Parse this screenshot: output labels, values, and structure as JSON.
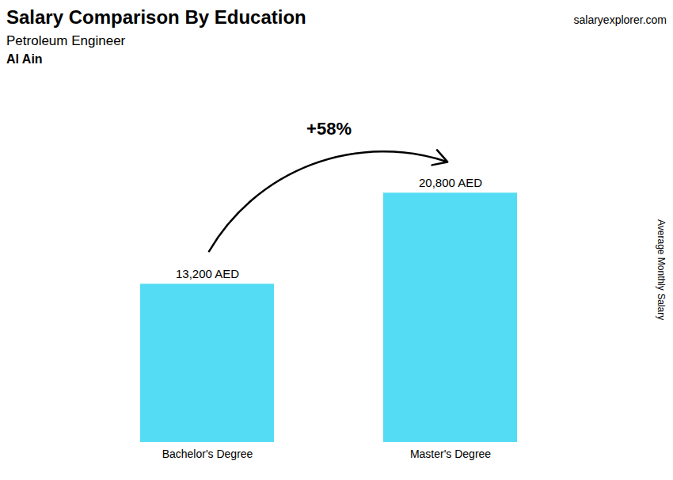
{
  "chart_data": {
    "type": "bar",
    "title": "Salary Comparison By Education",
    "subtitle": "Petroleum Engineer",
    "annotations": [
      {
        "text": "Al Ain"
      },
      {
        "text": "salaryexplorer.com"
      },
      {
        "text": "+58%",
        "from": "Bachelor's Degree",
        "to": "Master's Degree"
      }
    ],
    "ylabel": "Average Monthly Salary",
    "categories": [
      "Bachelor's Degree",
      "Master's Degree"
    ],
    "values": [
      13200,
      20800
    ],
    "value_labels": [
      "13,200 AED",
      "20,800 AED"
    ],
    "data_labels": true,
    "color": "#55dcf5",
    "ylim": [
      0,
      30000
    ],
    "tick_labels": "x"
  }
}
